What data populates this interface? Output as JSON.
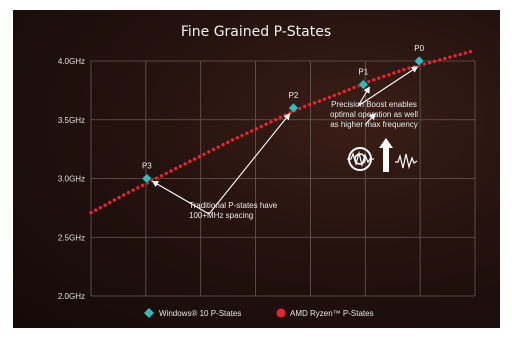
{
  "chart_data": {
    "type": "line",
    "title": "Fine Grained P-States",
    "y_ticks": [
      "4.0GHz",
      "3.5GHz",
      "3.0GHz",
      "2.5GHz",
      "2.0GHz"
    ],
    "ylim": [
      2.0,
      4.0
    ],
    "grid": true,
    "legend_position": "bottom-center",
    "series": [
      {
        "name": "AMD Ryzen™ P-States",
        "color": "#e8242c",
        "style": "dotted",
        "x": [
          0.0,
          0.5,
          1.0,
          1.5,
          2.0,
          2.5,
          3.0,
          3.5,
          4.0,
          4.5,
          5.0,
          5.5
        ],
        "y": [
          2.71,
          2.87,
          3.02,
          3.17,
          3.32,
          3.46,
          3.6,
          3.71,
          3.83,
          3.93,
          4.01,
          4.09
        ]
      },
      {
        "name": "Windows® 10 P-States",
        "color": "#39b8b8",
        "marker": "diamond",
        "x": [
          0.8,
          2.9,
          3.9,
          4.7
        ],
        "y": [
          3.0,
          3.6,
          3.8,
          4.0
        ],
        "labels": [
          "P3",
          "P2",
          "P1",
          "P0"
        ]
      }
    ],
    "annotations": [
      {
        "lines": [
          "Traditional P-states have",
          "100+MHz spacing"
        ]
      },
      {
        "lines": [
          "Precision Boost enables",
          "optimal operation as well",
          "as higher max frequency"
        ]
      }
    ]
  },
  "icons": [
    "precision-boost-target-icon",
    "frequency-arrow-icon"
  ]
}
